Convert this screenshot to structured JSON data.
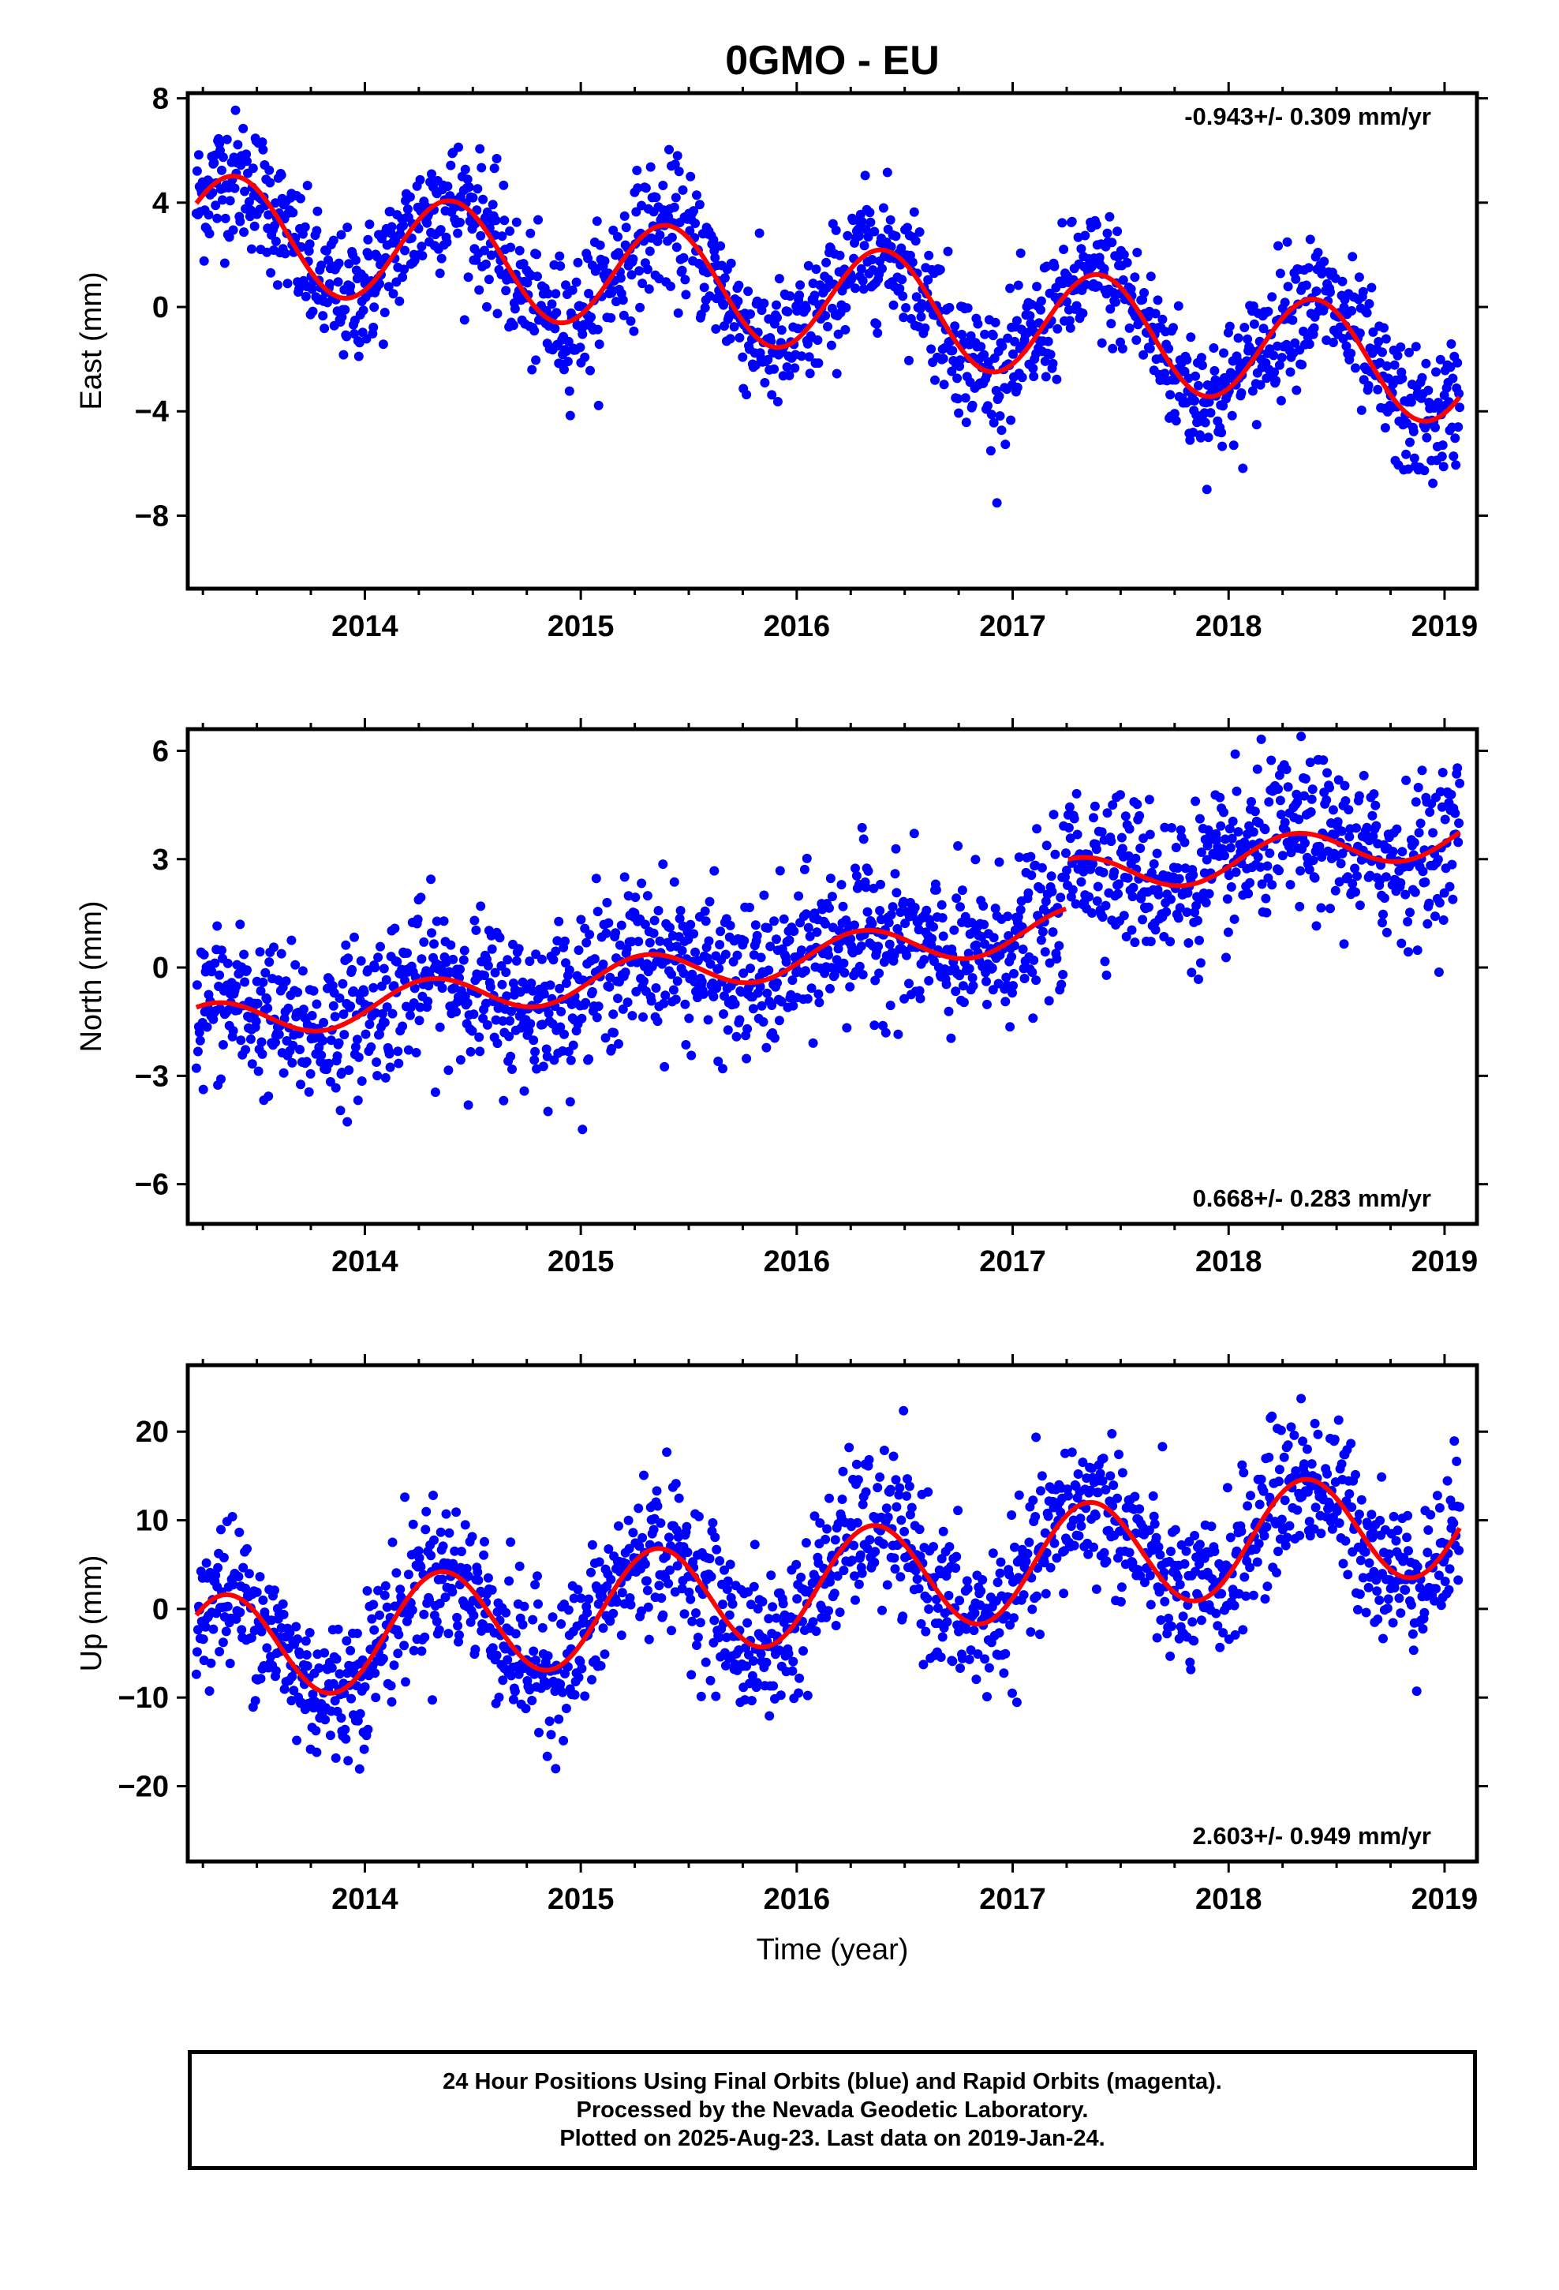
{
  "title": "0GMO - EU",
  "colors": {
    "data": "#0000ff",
    "model": "#ff0000",
    "axis": "#000000"
  },
  "time_axis_label": "Time (year)",
  "x_ticks": [
    2014,
    2015,
    2016,
    2017,
    2018,
    2019
  ],
  "chart_data": [
    {
      "type": "scatter",
      "name": "east",
      "ylabel": "East (mm)",
      "rate_label": "-0.943+/- 0.309 mm/yr",
      "xlim": [
        2013.18,
        2019.15
      ],
      "ylim": [
        -10.8,
        8.2
      ],
      "y_ticks": [
        8,
        4,
        0,
        -4,
        -8
      ],
      "series_model": {
        "offset": 3.1,
        "trend": -0.943,
        "amp": 2.1,
        "phase_year": 2013.4
      },
      "scatter_stats": {
        "t_start": 2013.22,
        "t_end": 2019.07,
        "n": 1650,
        "noise": 1.25,
        "gap_center": 2016.0
      }
    },
    {
      "type": "scatter",
      "name": "north",
      "ylabel": "North (mm)",
      "rate_label": "0.668+/- 0.283 mm/yr",
      "xlim": [
        2013.18,
        2019.15
      ],
      "ylim": [
        -7.1,
        6.6
      ],
      "y_ticks": [
        6,
        3,
        0,
        -3,
        -6
      ],
      "series_model": {
        "offset": -1.6,
        "trend": 0.668,
        "amp": 0.55,
        "phase_year": 2013.3,
        "step_year": 2017.25,
        "step_size": 1.35
      },
      "scatter_stats": {
        "t_start": 2013.22,
        "t_end": 2019.07,
        "n": 1650,
        "noise": 1.05
      }
    },
    {
      "type": "scatter",
      "name": "up",
      "ylabel": "Up (mm)",
      "rate_label": "2.603+/- 0.949 mm/yr",
      "xlim": [
        2013.18,
        2019.15
      ],
      "ylim": [
        -28.5,
        27.5
      ],
      "y_ticks": [
        20,
        10,
        0,
        -10,
        -20
      ],
      "series_model": {
        "offset": -5.0,
        "trend": 2.603,
        "amp": 6.2,
        "phase_year": 2013.35
      },
      "scatter_stats": {
        "t_start": 2013.22,
        "t_end": 2019.07,
        "n": 1650,
        "noise": 4.2
      }
    }
  ],
  "caption": [
    "24 Hour Positions Using Final Orbits (blue) and Rapid Orbits (magenta).",
    "Processed by the Nevada Geodetic Laboratory.",
    "Plotted on 2025-Aug-23. Last data on 2019-Jan-24."
  ]
}
